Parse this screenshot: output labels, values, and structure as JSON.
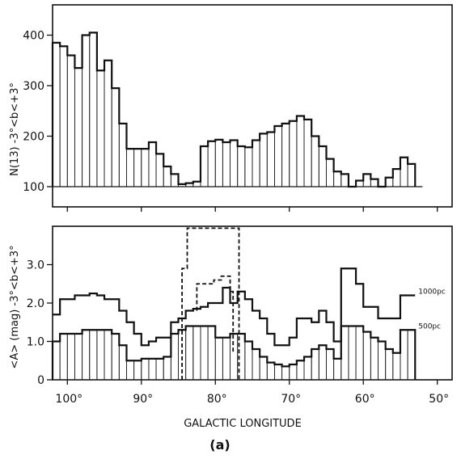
{
  "xaxis_label": "GALACTIC  LONGITUDE",
  "figure_label": "(a)",
  "chart_data": [
    {
      "type": "bar",
      "panel": "top",
      "ylabel": "N(13) -3°<b<+3°",
      "xlim": [
        102,
        48
      ],
      "ylim": [
        60,
        460
      ],
      "yticks": [
        {
          "v": 100,
          "label": "100"
        },
        {
          "v": 200,
          "label": "200"
        },
        {
          "v": 300,
          "label": "300"
        },
        {
          "v": 400,
          "label": "400"
        }
      ],
      "xticks": [
        {
          "v": 100,
          "label": "100°"
        },
        {
          "v": 90,
          "label": "90°"
        },
        {
          "v": 80,
          "label": "80°"
        },
        {
          "v": 70,
          "label": "70°"
        },
        {
          "v": 60,
          "label": "60°"
        },
        {
          "v": 50,
          "label": "50°"
        }
      ],
      "baseline": 100,
      "bin_width": 1,
      "bin_starts": [
        101,
        100,
        99,
        98,
        97,
        96,
        95,
        94,
        93,
        92,
        91,
        90,
        89,
        88,
        87,
        86,
        85,
        84,
        83,
        82,
        81,
        80,
        79,
        78,
        77,
        76,
        75,
        74,
        73,
        72,
        71,
        70,
        69,
        68,
        67,
        66,
        65,
        64,
        63,
        62,
        61,
        60,
        59,
        58,
        57,
        56,
        55,
        54,
        53
      ],
      "values": [
        385,
        378,
        360,
        335,
        400,
        405,
        330,
        350,
        295,
        225,
        175,
        175,
        175,
        188,
        165,
        140,
        125,
        105,
        107,
        110,
        180,
        190,
        193,
        188,
        192,
        180,
        178,
        192,
        205,
        208,
        220,
        225,
        230,
        240,
        233,
        200,
        180,
        155,
        130,
        125,
        100,
        112,
        125,
        115,
        100,
        118,
        135,
        158,
        145
      ]
    },
    {
      "type": "line",
      "panel": "bottom",
      "ylabel": "<A> (mag) -3°<b<+3°",
      "xlim": [
        102,
        48
      ],
      "ylim": [
        0,
        4.0
      ],
      "yticks": [
        {
          "v": 0,
          "label": "0"
        },
        {
          "v": 1.0,
          "label": "1.0"
        },
        {
          "v": 2.0,
          "label": "2.0"
        },
        {
          "v": 3.0,
          "label": "3.0"
        }
      ],
      "xticks": [
        {
          "v": 100,
          "label": "100°"
        },
        {
          "v": 90,
          "label": "90°"
        },
        {
          "v": 80,
          "label": "80°"
        },
        {
          "v": 70,
          "label": "70°"
        },
        {
          "v": 60,
          "label": "60°"
        },
        {
          "v": 50,
          "label": "50°"
        }
      ],
      "bin_width": 1,
      "series": [
        {
          "name": "500pc",
          "style": "hatched",
          "bin_starts": [
            101,
            100,
            99,
            98,
            97,
            96,
            95,
            94,
            93,
            92,
            91,
            90,
            89,
            88,
            87,
            86,
            85,
            84,
            83,
            82,
            81,
            80,
            79,
            78,
            77,
            76,
            75,
            74,
            73,
            72,
            71,
            70,
            69,
            68,
            67,
            66,
            65,
            64,
            63,
            62,
            61,
            60,
            59,
            58,
            57,
            56,
            55,
            54,
            53
          ],
          "values": [
            1.0,
            1.2,
            1.2,
            1.2,
            1.3,
            1.3,
            1.3,
            1.3,
            1.2,
            0.9,
            0.5,
            0.5,
            0.55,
            0.55,
            0.55,
            0.6,
            1.2,
            1.3,
            1.4,
            1.4,
            1.4,
            1.4,
            1.1,
            1.1,
            1.2,
            1.2,
            1.0,
            0.8,
            0.6,
            0.45,
            0.4,
            0.35,
            0.4,
            0.5,
            0.6,
            0.8,
            0.9,
            0.8,
            0.55,
            1.4,
            1.4,
            1.4,
            1.25,
            1.1,
            1.0,
            0.8,
            0.7,
            1.3,
            1.3
          ]
        },
        {
          "name": "1000pc",
          "style": "line",
          "bin_starts": [
            101,
            100,
            99,
            98,
            97,
            96,
            95,
            94,
            93,
            92,
            91,
            90,
            89,
            88,
            87,
            86,
            85,
            84,
            83,
            82,
            81,
            80,
            79,
            78,
            77,
            76,
            75,
            74,
            73,
            72,
            71,
            70,
            69,
            68,
            67,
            66,
            65,
            64,
            63,
            62,
            61,
            60,
            59,
            58,
            57,
            56,
            55,
            54,
            53
          ],
          "values": [
            1.7,
            2.1,
            2.1,
            2.2,
            2.2,
            2.25,
            2.2,
            2.1,
            2.1,
            1.8,
            1.5,
            1.2,
            0.9,
            1.0,
            1.1,
            1.1,
            1.5,
            1.6,
            1.8,
            1.85,
            1.9,
            2.0,
            2.0,
            2.4,
            2.0,
            2.3,
            2.1,
            1.8,
            1.6,
            1.2,
            0.9,
            0.9,
            1.1,
            1.6,
            1.6,
            1.5,
            1.8,
            1.5,
            1.0,
            2.9,
            2.9,
            2.5,
            1.9,
            1.9,
            1.6,
            1.6,
            1.6,
            2.2,
            2.2
          ]
        },
        {
          "name": "upper_dashed",
          "style": "dashed",
          "points": [
            [
              84.5,
              0
            ],
            [
              84.5,
              2.9
            ],
            [
              83.8,
              2.9
            ],
            [
              83.8,
              3.95
            ],
            [
              76.8,
              3.95
            ],
            [
              76.8,
              0
            ]
          ]
        },
        {
          "name": "lower_dashed",
          "style": "dashed",
          "points": [
            [
              82.5,
              1.8
            ],
            [
              82.5,
              2.5
            ],
            [
              80.2,
              2.5
            ],
            [
              80.2,
              2.6
            ],
            [
              79.2,
              2.6
            ],
            [
              79.2,
              2.7
            ],
            [
              78,
              2.7
            ],
            [
              78,
              2.3
            ],
            [
              77.6,
              2.3
            ],
            [
              77.6,
              0.7
            ]
          ]
        }
      ],
      "annotations": [
        {
          "text": "1000pc",
          "series": "1000pc"
        },
        {
          "text": "500pc",
          "series": "500pc"
        }
      ]
    }
  ]
}
